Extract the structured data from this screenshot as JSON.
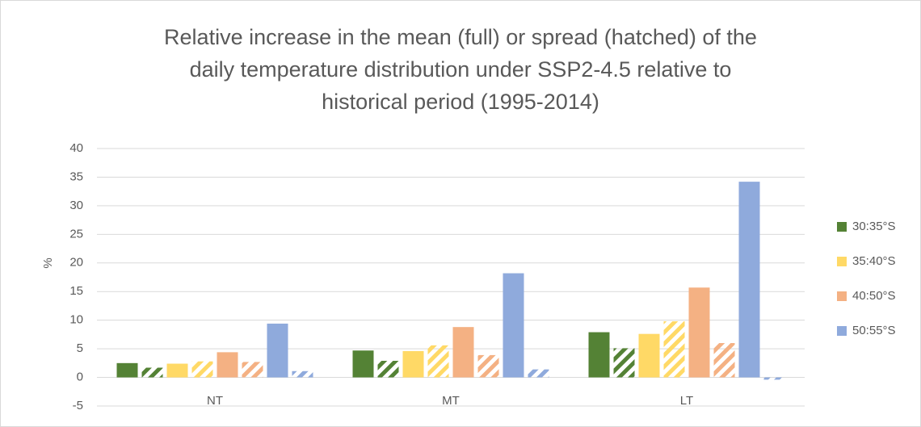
{
  "chart_data": {
    "type": "bar",
    "title": [
      "Relative increase in the mean (full) or spread (hatched) of the",
      "daily temperature distribution under SSP2-4.5 relative to",
      "historical period (1995-2014)"
    ],
    "y_label": "%",
    "categories": [
      "NT",
      "MT",
      "LT"
    ],
    "series": [
      {
        "name": "30:35°S",
        "color": "#548235",
        "values": [
          2.5,
          4.7,
          7.9
        ],
        "spread_values": [
          1.7,
          2.9,
          5.1
        ]
      },
      {
        "name": "35:40°S",
        "color": "#ffd966",
        "values": [
          2.4,
          4.6,
          7.6
        ],
        "spread_values": [
          2.8,
          5.6,
          9.8
        ]
      },
      {
        "name": "40:50°S",
        "color": "#f4b183",
        "values": [
          4.4,
          8.8,
          15.7
        ],
        "spread_values": [
          2.7,
          3.9,
          6.0
        ]
      },
      {
        "name": "50:55°S",
        "color": "#8faadc",
        "values": [
          9.4,
          18.2,
          34.2
        ],
        "spread_values": [
          1.1,
          1.4,
          -0.4
        ]
      }
    ],
    "ylim": [
      -5,
      40
    ],
    "yticks": [
      -5,
      0,
      5,
      10,
      15,
      20,
      25,
      30,
      35,
      40
    ],
    "grid": true,
    "legend": "right"
  }
}
